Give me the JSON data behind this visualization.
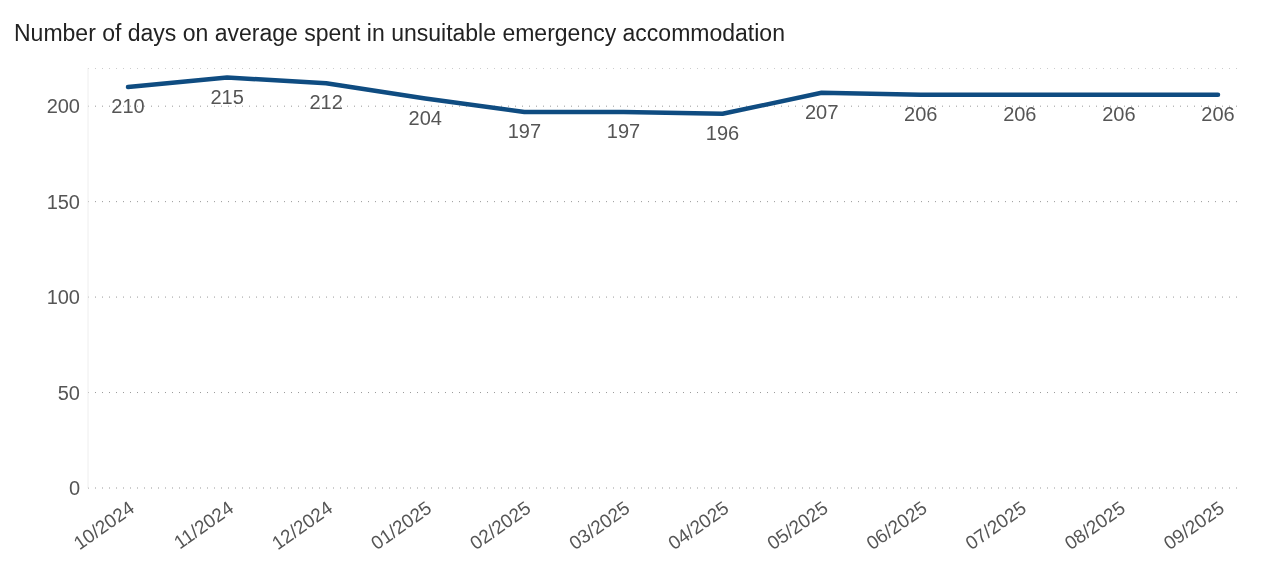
{
  "chart_data": {
    "type": "line",
    "title": "Number of days on average spent in unsuitable emergency accommodation",
    "categories": [
      "10/2024",
      "11/2024",
      "12/2024",
      "01/2025",
      "02/2025",
      "03/2025",
      "04/2025",
      "05/2025",
      "06/2025",
      "07/2025",
      "08/2025",
      "09/2025"
    ],
    "series": [
      {
        "color": "#0f4c81",
        "values": [
          210,
          215,
          212,
          204,
          197,
          197,
          196,
          207,
          206,
          206,
          206,
          206
        ]
      }
    ],
    "ylim": [
      0,
      220
    ],
    "yticks": [
      0,
      50,
      100,
      150,
      200
    ],
    "grid": "y",
    "data_labels": true,
    "marker": "none",
    "line_style": "solid"
  }
}
